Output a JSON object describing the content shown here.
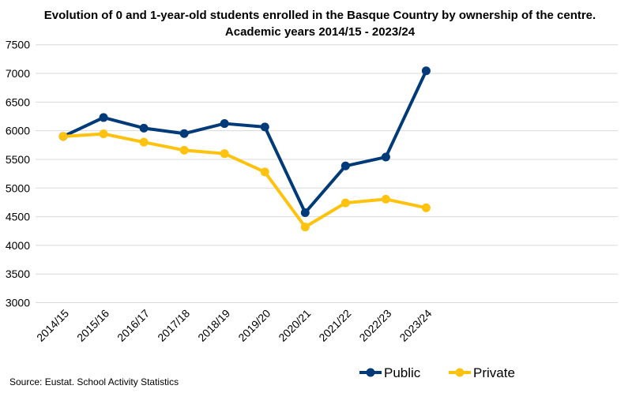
{
  "chart_data": {
    "type": "line",
    "title": "Evolution of 0 and 1-year-old students enrolled in the Basque Country by ownership of the centre.",
    "subtitle": "Academic years 2014/15 - 2023/24",
    "xlabel": "",
    "ylabel": "",
    "ylim": [
      3000,
      7500
    ],
    "yticks": [
      3000,
      3500,
      4000,
      4500,
      5000,
      5500,
      6000,
      6500,
      7000,
      7500
    ],
    "grid": true,
    "legend_position": "bottom-right",
    "categories": [
      "2014/15",
      "2015/16",
      "2016/17",
      "2017/18",
      "2018/19",
      "2019/20",
      "2020/21",
      "2021/22",
      "2022/23",
      "2023/24"
    ],
    "series": [
      {
        "name": "Public",
        "color": "#003a78",
        "values": [
          5900,
          6230,
          6045,
          5950,
          6125,
          6065,
          4570,
          5385,
          5540,
          7045
        ]
      },
      {
        "name": "Private",
        "color": "#ffc20e",
        "values": [
          5900,
          5945,
          5800,
          5660,
          5600,
          5280,
          4320,
          4740,
          4805,
          4655
        ]
      }
    ],
    "source": "Source: Eustat. School Activity Statistics"
  }
}
